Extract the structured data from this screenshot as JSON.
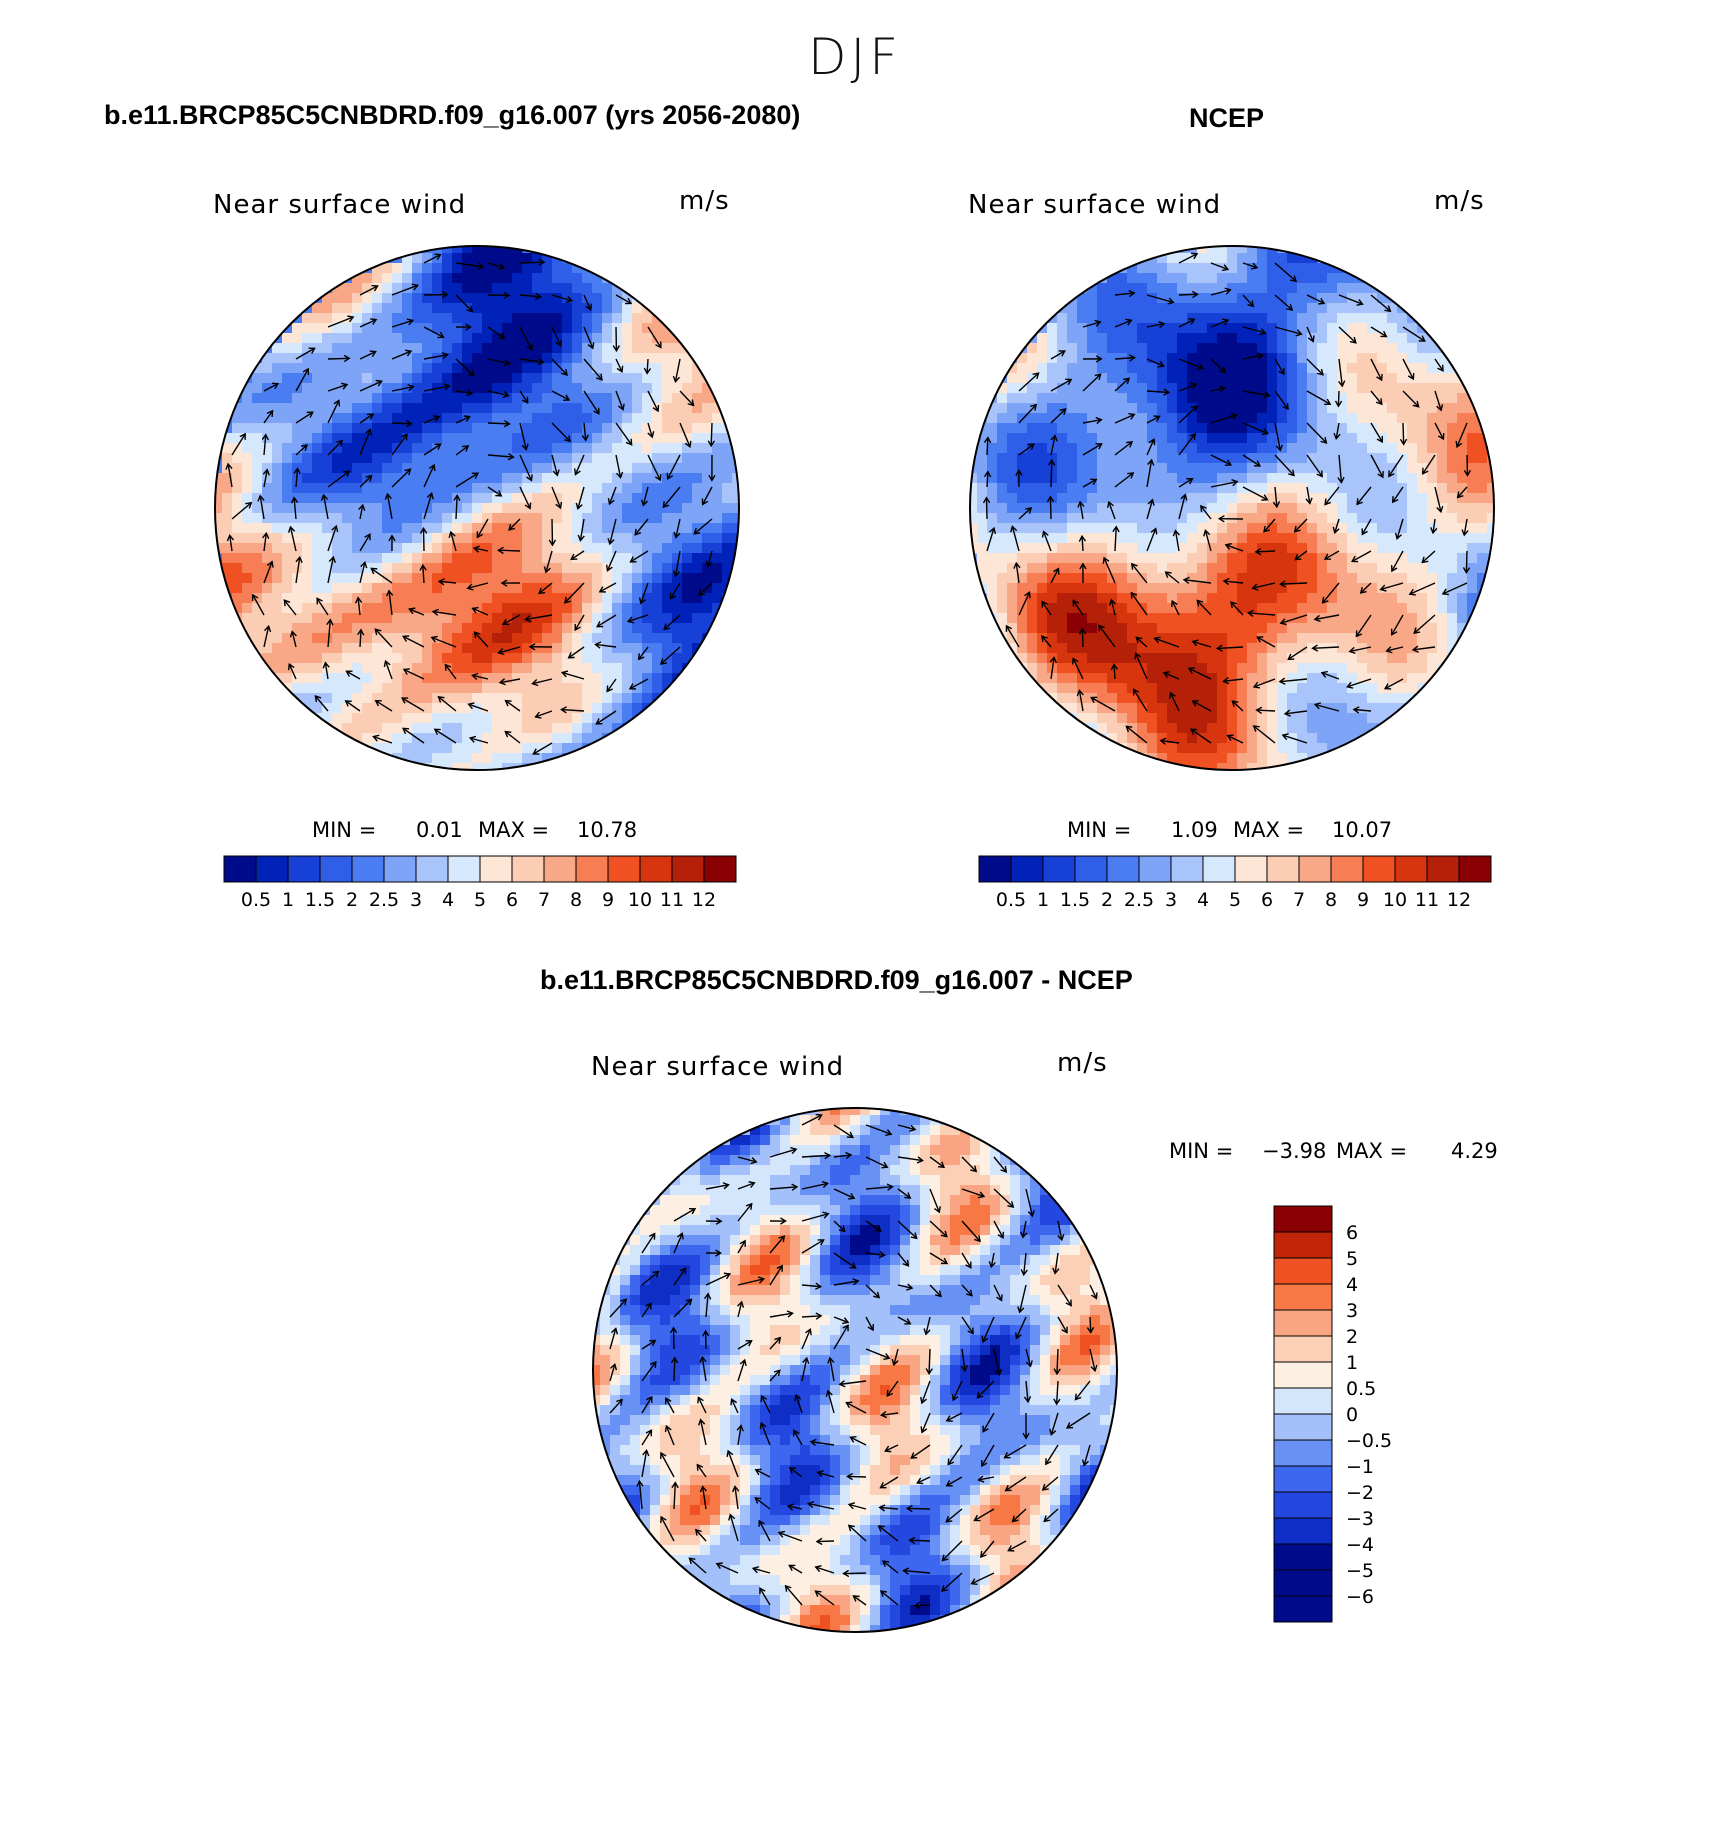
{
  "page": {
    "title": "DJF"
  },
  "colors": {
    "abs_scale": [
      "#000b8c",
      "#0022b8",
      "#1740d6",
      "#2f5ee8",
      "#4a7cf2",
      "#7ea4f7",
      "#a8c4fa",
      "#d6e8fc",
      "#fde6d6",
      "#fccdb5",
      "#f9a887",
      "#f77e54",
      "#ef5122",
      "#d6350e",
      "#b52108",
      "#8a0004"
    ],
    "diff_scale": [
      "#000b8c",
      "#0e2ec6",
      "#2447e0",
      "#3c67ee",
      "#6891f5",
      "#a3c0fa",
      "#d4e6fc",
      "#fdf0e2",
      "#fcd0b6",
      "#f9a482",
      "#f77845",
      "#ef5122",
      "#c02508",
      "#8a0004"
    ]
  },
  "chart_data": [
    {
      "type": "heatmap",
      "map_projection": "polar stereographic (Northern Hemisphere)",
      "title": "b.e11.BRCP85C5CNBDRD.f09_g16.007 (yrs 2056-2080)",
      "variable": "Near surface wind",
      "units": "m/s",
      "min_label": "MIN =",
      "min_value": "0.01",
      "max_label": "MAX =",
      "max_value": "10.78",
      "colorbar": {
        "orientation": "horizontal",
        "levels": [
          "0.5",
          "1",
          "1.5",
          "2",
          "2.5",
          "3",
          "4",
          "5",
          "6",
          "7",
          "8",
          "9",
          "10",
          "11",
          "12"
        ]
      },
      "overlay": "wind vectors"
    },
    {
      "type": "heatmap",
      "map_projection": "polar stereographic (Northern Hemisphere)",
      "title": "NCEP",
      "variable": "Near surface wind",
      "units": "m/s",
      "min_label": "MIN =",
      "min_value": "1.09",
      "max_label": "MAX =",
      "max_value": "10.07",
      "colorbar": {
        "orientation": "horizontal",
        "levels": [
          "0.5",
          "1",
          "1.5",
          "2",
          "2.5",
          "3",
          "4",
          "5",
          "6",
          "7",
          "8",
          "9",
          "10",
          "11",
          "12"
        ]
      },
      "overlay": "wind vectors"
    },
    {
      "type": "heatmap",
      "map_projection": "polar stereographic (Northern Hemisphere)",
      "title": "b.e11.BRCP85C5CNBDRD.f09_g16.007 - NCEP",
      "variable": "Near surface wind",
      "units": "m/s",
      "min_label": "MIN =",
      "min_value": "−3.98",
      "max_label": "MAX =",
      "max_value": "4.29",
      "colorbar": {
        "orientation": "vertical",
        "levels": [
          "6",
          "5",
          "4",
          "3",
          "2",
          "1",
          "0.5",
          "0",
          "−0.5",
          "−1",
          "−2",
          "−3",
          "−4",
          "−5",
          "−6"
        ]
      },
      "overlay": "wind vectors"
    }
  ]
}
